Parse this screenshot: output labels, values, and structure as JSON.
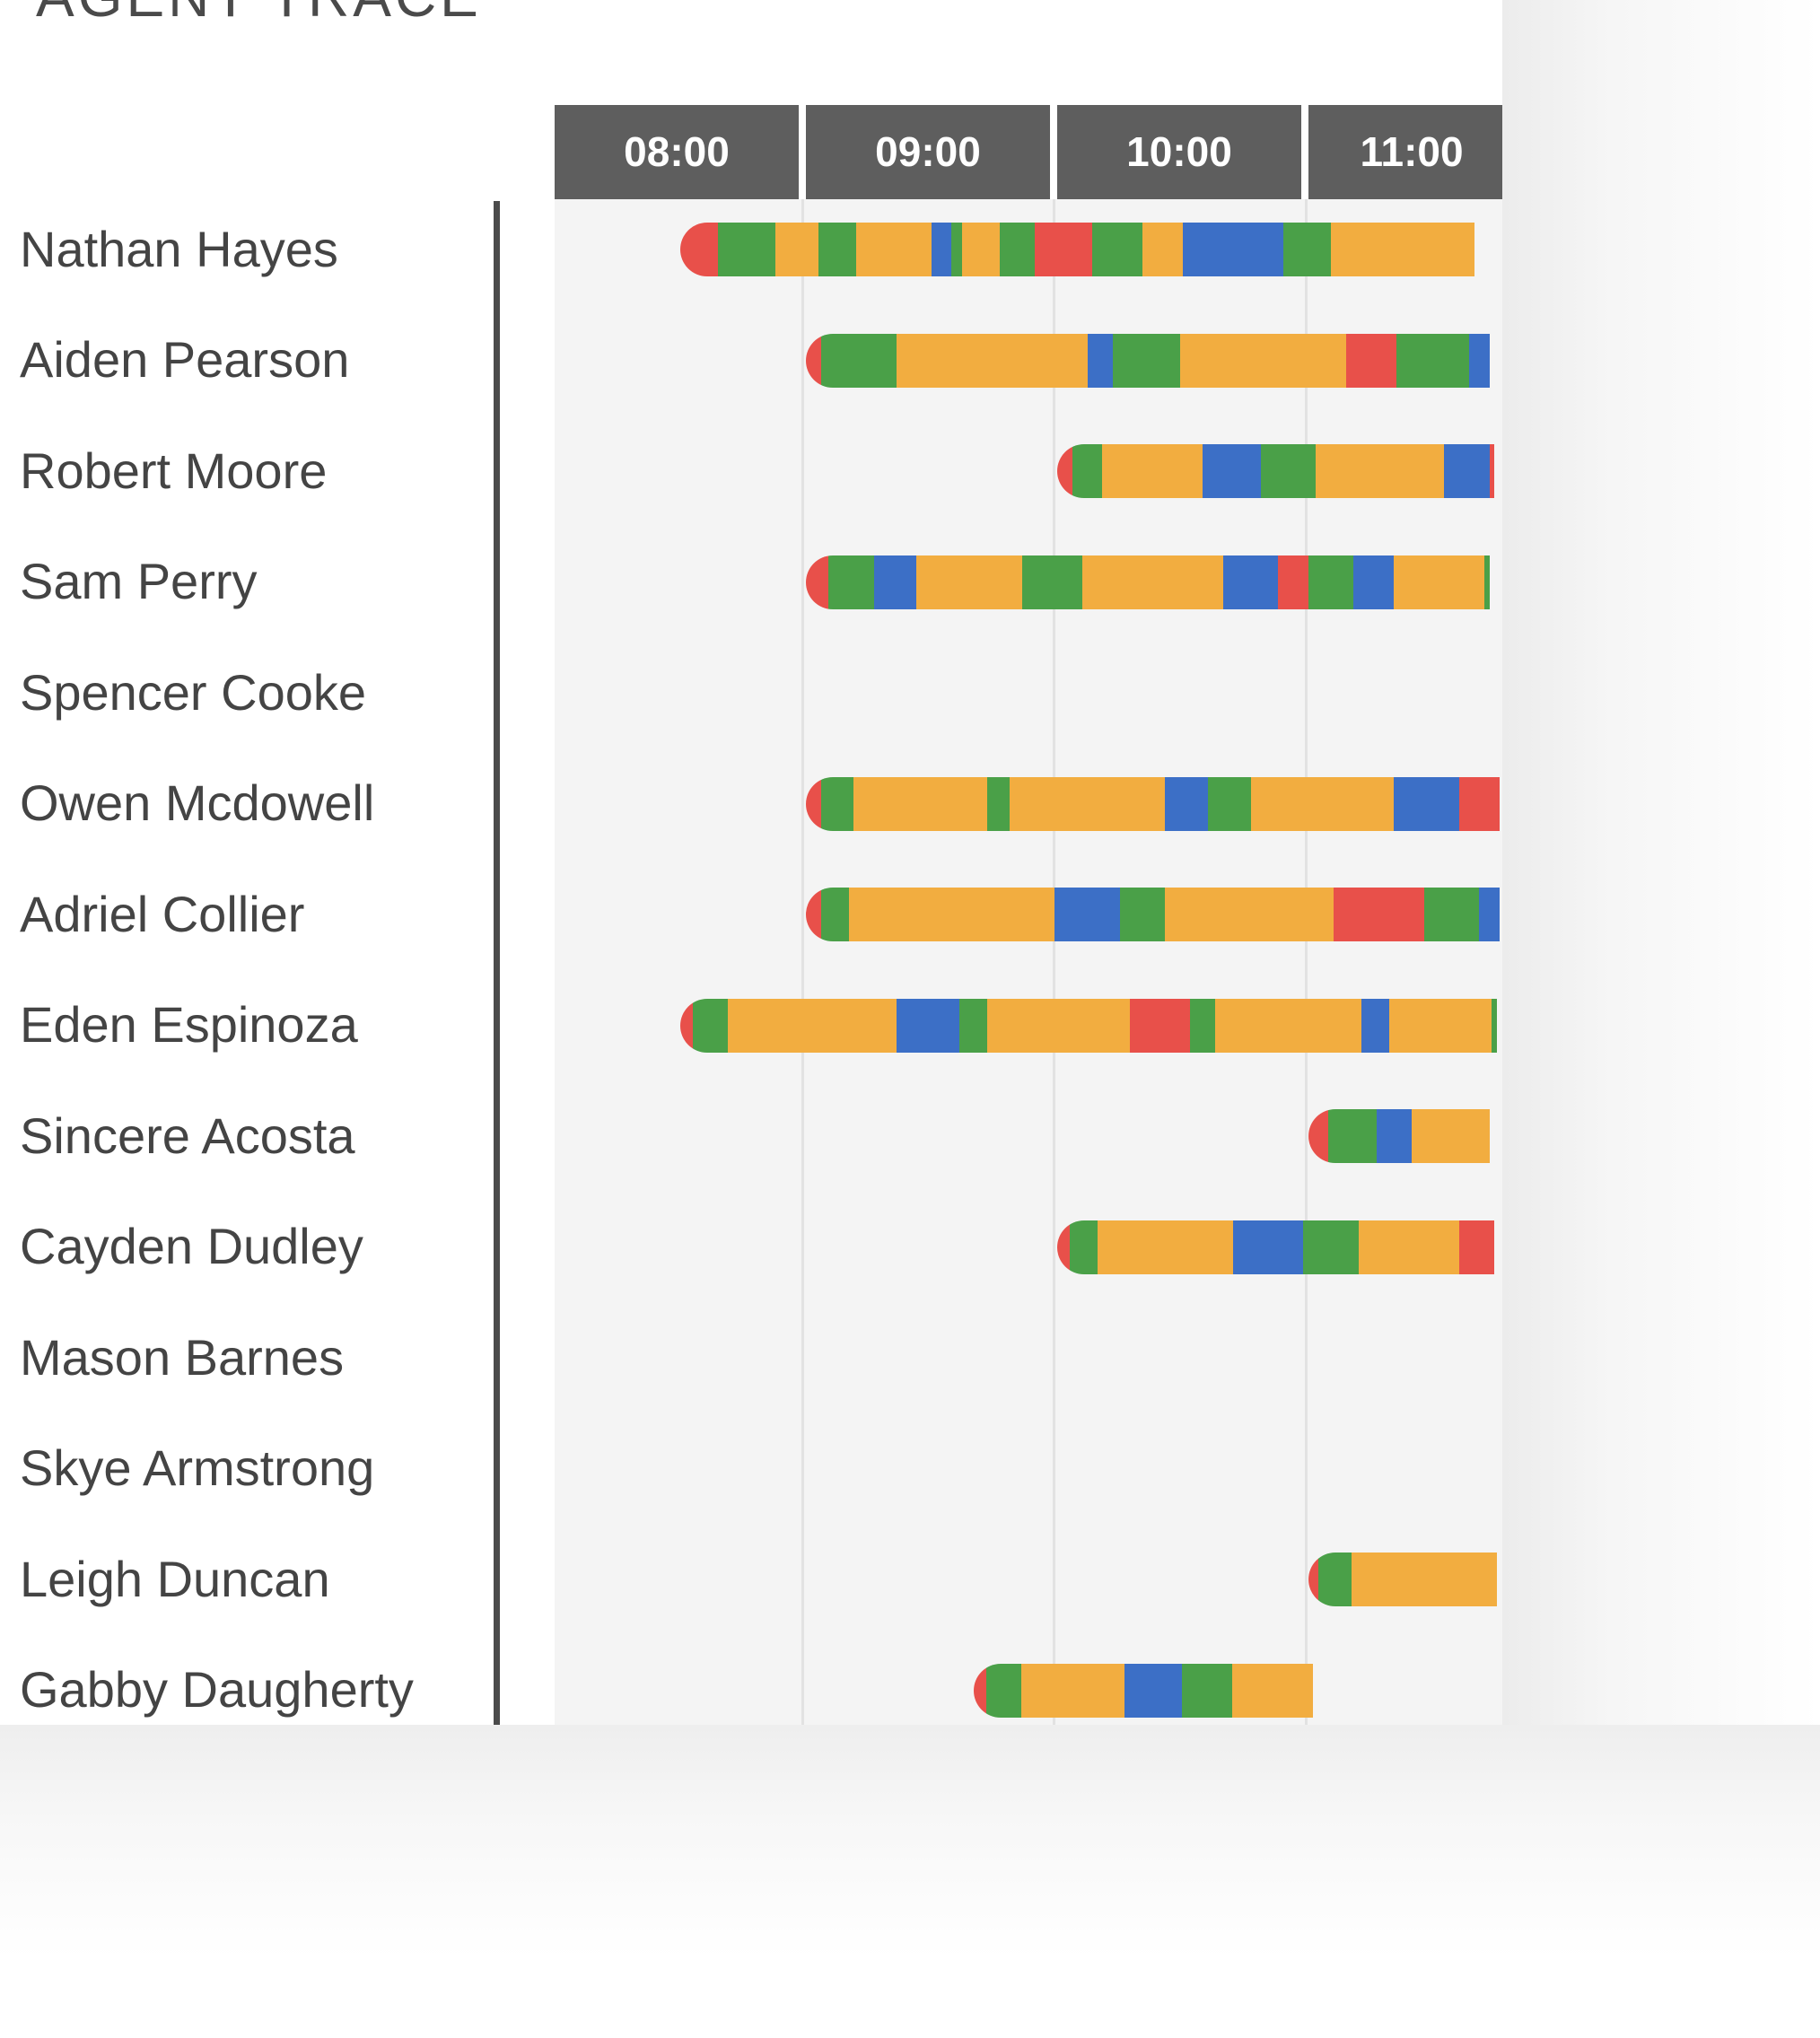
{
  "page": {
    "title": "AGENT TRACE"
  },
  "status_colors": {
    "R": "#e8504a",
    "G": "#4aa048",
    "B": "#3c6fc6",
    "Y": "#f2ad40"
  },
  "time_headers": [
    {
      "label": "08:00"
    },
    {
      "label": "09:00"
    },
    {
      "label": "10:00"
    },
    {
      "label": "11:00"
    }
  ],
  "agents": [
    {
      "name": "Nathan Hayes",
      "start": "08:30",
      "segments": [
        [
          "R",
          0.15
        ],
        [
          "G",
          0.23
        ],
        [
          "Y",
          0.17
        ],
        [
          "G",
          0.15
        ],
        [
          "Y",
          0.3
        ],
        [
          "B",
          0.08
        ],
        [
          "G",
          0.04
        ],
        [
          "Y",
          0.15
        ],
        [
          "G",
          0.14
        ],
        [
          "R",
          0.23
        ],
        [
          "G",
          0.2
        ],
        [
          "Y",
          0.16
        ],
        [
          "B",
          0.4
        ],
        [
          "G",
          0.19
        ],
        [
          "Y",
          0.57
        ]
      ]
    },
    {
      "name": "Aiden Pearson",
      "start": "09:00",
      "segments": [
        [
          "R",
          0.06
        ],
        [
          "G",
          0.3
        ],
        [
          "Y",
          0.76
        ],
        [
          "B",
          0.1
        ],
        [
          "G",
          0.27
        ],
        [
          "Y",
          0.66
        ],
        [
          "R",
          0.2
        ],
        [
          "G",
          0.29
        ],
        [
          "B",
          0.08
        ]
      ]
    },
    {
      "name": "Robert Moore",
      "start": "10:00",
      "segments": [
        [
          "R",
          0.06
        ],
        [
          "G",
          0.12
        ],
        [
          "Y",
          0.4
        ],
        [
          "B",
          0.23
        ],
        [
          "G",
          0.22
        ],
        [
          "Y",
          0.51
        ],
        [
          "B",
          0.18
        ],
        [
          "R",
          0.02
        ]
      ]
    },
    {
      "name": "Sam Perry",
      "start": "09:00",
      "segments": [
        [
          "R",
          0.09
        ],
        [
          "G",
          0.18
        ],
        [
          "B",
          0.17
        ],
        [
          "Y",
          0.42
        ],
        [
          "G",
          0.24
        ],
        [
          "Y",
          0.56
        ],
        [
          "B",
          0.22
        ],
        [
          "R",
          0.12
        ],
        [
          "G",
          0.18
        ],
        [
          "B",
          0.16
        ],
        [
          "Y",
          0.36
        ],
        [
          "G",
          0.02
        ]
      ]
    },
    {
      "name": "Spencer Cooke",
      "start": "",
      "segments": []
    },
    {
      "name": "Owen Mcdowell",
      "start": "09:00",
      "segments": [
        [
          "R",
          0.06
        ],
        [
          "G",
          0.13
        ],
        [
          "Y",
          0.53
        ],
        [
          "G",
          0.09
        ],
        [
          "Y",
          0.62
        ],
        [
          "B",
          0.17
        ],
        [
          "G",
          0.17
        ],
        [
          "Y",
          0.57
        ],
        [
          "B",
          0.26
        ],
        [
          "R",
          0.16
        ]
      ]
    },
    {
      "name": "Adriel Collier",
      "start": "09:00",
      "segments": [
        [
          "R",
          0.06
        ],
        [
          "G",
          0.11
        ],
        [
          "Y",
          0.82
        ],
        [
          "B",
          0.26
        ],
        [
          "G",
          0.18
        ],
        [
          "Y",
          0.67
        ],
        [
          "R",
          0.36
        ],
        [
          "G",
          0.22
        ],
        [
          "B",
          0.08
        ]
      ]
    },
    {
      "name": "Eden Espinoza",
      "start": "08:30",
      "segments": [
        [
          "R",
          0.05
        ],
        [
          "G",
          0.14
        ],
        [
          "Y",
          0.67
        ],
        [
          "B",
          0.25
        ],
        [
          "G",
          0.11
        ],
        [
          "Y",
          0.57
        ],
        [
          "R",
          0.24
        ],
        [
          "G",
          0.1
        ],
        [
          "Y",
          0.58
        ],
        [
          "B",
          0.11
        ],
        [
          "Y",
          0.41
        ],
        [
          "G",
          0.02
        ]
      ]
    },
    {
      "name": "Sincere Acosta",
      "start": "11:00",
      "segments": [
        [
          "R",
          0.08
        ],
        [
          "G",
          0.19
        ],
        [
          "B",
          0.14
        ],
        [
          "Y",
          0.31
        ]
      ]
    },
    {
      "name": "Cayden Dudley",
      "start": "10:00",
      "segments": [
        [
          "R",
          0.05
        ],
        [
          "G",
          0.11
        ],
        [
          "Y",
          0.54
        ],
        [
          "B",
          0.28
        ],
        [
          "G",
          0.22
        ],
        [
          "Y",
          0.4
        ],
        [
          "R",
          0.14
        ]
      ]
    },
    {
      "name": "Mason Barnes",
      "start": "",
      "segments": []
    },
    {
      "name": "Skye Armstrong",
      "start": "",
      "segments": []
    },
    {
      "name": "Leigh Duncan",
      "start": "11:00",
      "segments": [
        [
          "R",
          0.04
        ],
        [
          "G",
          0.13
        ],
        [
          "Y",
          0.58
        ]
      ]
    },
    {
      "name": "Gabby Daugherty",
      "start": "09:40",
      "segments": [
        [
          "R",
          0.05
        ],
        [
          "G",
          0.14
        ],
        [
          "Y",
          0.41
        ],
        [
          "B",
          0.23
        ],
        [
          "G",
          0.2
        ],
        [
          "Y",
          0.32
        ]
      ]
    }
  ]
}
